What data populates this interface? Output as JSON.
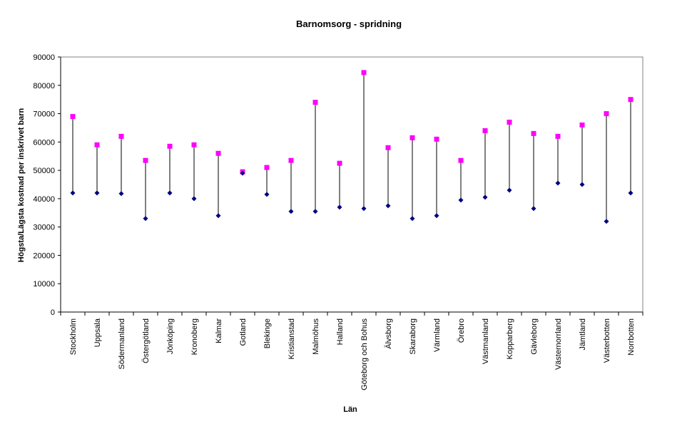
{
  "chart_data": {
    "type": "line",
    "style": "high-low",
    "title": "Barnomsorg - spridning",
    "xlabel": "Län",
    "ylabel": "Högsta/Lägsta kostnad per inskrivet barn",
    "ylim": [
      0,
      90000
    ],
    "yticks": [
      0,
      10000,
      20000,
      30000,
      40000,
      50000,
      60000,
      70000,
      80000,
      90000
    ],
    "grid": false,
    "legend": "none",
    "categories": [
      "Stockholm",
      "Uppsala",
      "Södermanland",
      "Östergötland",
      "Jönköping",
      "Kronoberg",
      "Kalmar",
      "Gotland",
      "Blekinge",
      "Kristianstad",
      "Malmöhus",
      "Halland",
      "Göteborg och Bohus",
      "Älvsborg",
      "Skaraborg",
      "Värmland",
      "Örebro",
      "Västmanland",
      "Kopparberg",
      "Gävleborg",
      "Västernorrland",
      "Jämtland",
      "Västerbotten",
      "Norrbotten"
    ],
    "series": [
      {
        "marker": "square",
        "color": "#ff00ff",
        "values": [
          69000,
          59000,
          62000,
          53500,
          58500,
          59000,
          56000,
          49500,
          51000,
          53500,
          74000,
          52500,
          84500,
          58000,
          61500,
          61000,
          53500,
          64000,
          67000,
          63000,
          62000,
          66000,
          70000,
          75000
        ]
      },
      {
        "marker": "diamond",
        "color": "#000080",
        "values": [
          42000,
          42000,
          41800,
          33000,
          42000,
          40000,
          34000,
          49000,
          41500,
          35500,
          35500,
          37000,
          36500,
          37500,
          33000,
          34000,
          39500,
          40500,
          43000,
          36500,
          45500,
          45000,
          32000,
          42000
        ]
      }
    ]
  }
}
